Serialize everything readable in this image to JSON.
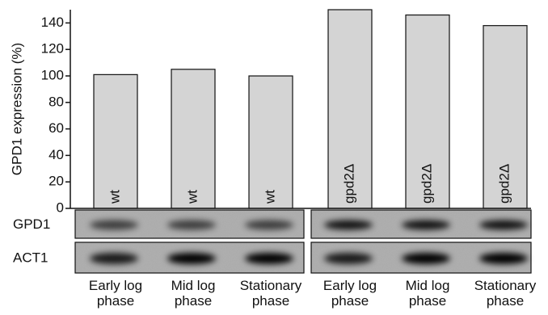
{
  "chart_data": {
    "type": "bar",
    "y_label": "GPD1 expression (%)",
    "categories": [
      "Early log phase",
      "Mid log phase",
      "Stationary phase",
      "Early log phase",
      "Mid log phase",
      "Stationary phase"
    ],
    "values": [
      101,
      105,
      100,
      150,
      146,
      138
    ],
    "bar_labels": [
      "wt",
      "wt",
      "wt",
      "gpd2Δ",
      "gpd2Δ",
      "gpd2Δ"
    ],
    "color": "#d4d4d4",
    "ylim": [
      0,
      150
    ],
    "yticks": [
      0,
      20,
      40,
      60,
      80,
      100,
      120,
      140
    ],
    "blot_labels": [
      "GPD1",
      "ACT1"
    ]
  }
}
